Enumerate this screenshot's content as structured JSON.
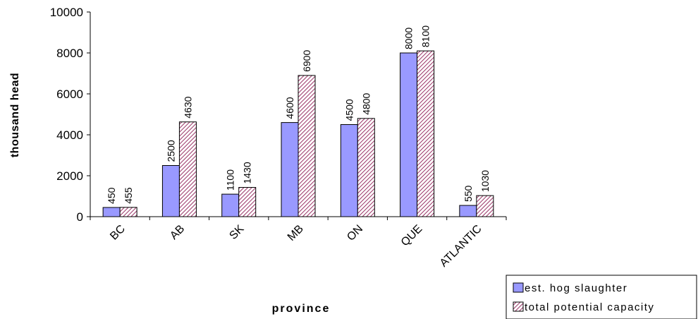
{
  "chart_data": {
    "type": "bar",
    "categories": [
      "BC",
      "AB",
      "SK",
      "MB",
      "ON",
      "QUE",
      "ATLANTIC"
    ],
    "series": [
      {
        "name": "est. hog slaughter",
        "values": [
          450,
          2500,
          1100,
          4600,
          4500,
          8000,
          550
        ],
        "color": "#9999ff",
        "pattern": "solid"
      },
      {
        "name": "total potential capacity",
        "values": [
          455,
          4630,
          1430,
          6900,
          4800,
          8100,
          1030
        ],
        "color": "#993366",
        "pattern": "diagonal-hatch"
      }
    ],
    "title": "",
    "xlabel": "province",
    "ylabel": "thousand head",
    "ylim": [
      0,
      10000
    ],
    "yticks": [
      0,
      2000,
      4000,
      6000,
      8000,
      10000
    ],
    "data_labels": true,
    "grid": false,
    "legend": "bottom-right"
  }
}
